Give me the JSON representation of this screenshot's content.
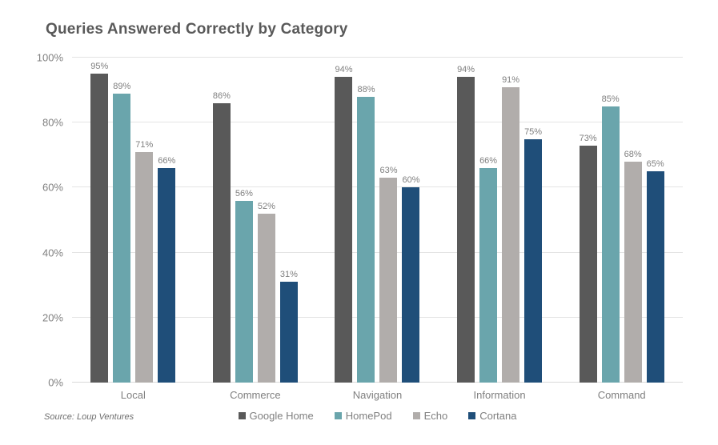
{
  "title": "Queries Answered Correctly by Category",
  "source_note": "Source: Loup Ventures",
  "chart_data": {
    "type": "bar",
    "title": "Queries Answered Correctly by Category",
    "categories": [
      "Local",
      "Commerce",
      "Navigation",
      "Information",
      "Command"
    ],
    "series": [
      {
        "name": "Google Home",
        "color": "#595959",
        "values": [
          95,
          86,
          94,
          94,
          73
        ]
      },
      {
        "name": "HomePod",
        "color": "#6AA5AC",
        "values": [
          89,
          56,
          88,
          66,
          85
        ]
      },
      {
        "name": "Echo",
        "color": "#B1ADAB",
        "values": [
          71,
          52,
          63,
          91,
          68
        ]
      },
      {
        "name": "Cortana",
        "color": "#1F4E79",
        "values": [
          66,
          31,
          60,
          75,
          65
        ]
      }
    ],
    "y_ticks": [
      "0%",
      "20%",
      "40%",
      "60%",
      "80%",
      "100%"
    ],
    "ylim": [
      0,
      100
    ],
    "value_label_suffix": "%",
    "grid": true,
    "legend_position": "bottom",
    "xlabel": "",
    "ylabel": ""
  }
}
